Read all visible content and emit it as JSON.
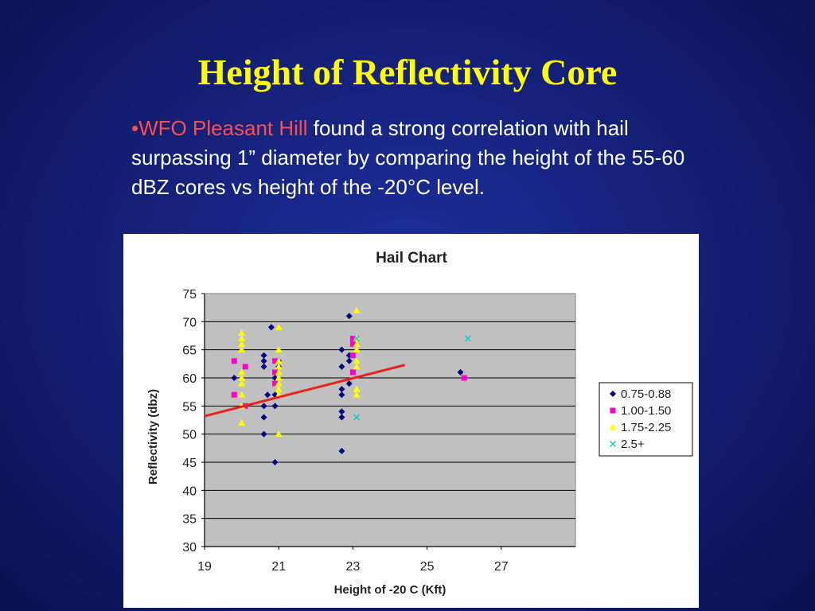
{
  "slide": {
    "title": "Height of Reflectivity Core",
    "bullet_marker": "•",
    "bullet_highlight": "WFO Pleasant Hill",
    "bullet_text": " found a strong correlation with hail surpassing 1” diameter by comparing the height of the 55-60 dBZ cores vs height of the -20°C level."
  },
  "colors": {
    "title": "#ffff00",
    "highlight": "#ff4e4e",
    "plot_bg": "#c0c0c0",
    "trend": "#e8231c"
  },
  "chart_data": {
    "type": "scatter",
    "title": "Hail Chart",
    "xlabel": "Height of -20 C (Kft)",
    "ylabel": "Reflectivity (dbz)",
    "xlim": [
      19,
      29
    ],
    "ylim": [
      30,
      75
    ],
    "xticks": [
      "19",
      "21",
      "23",
      "25",
      "27"
    ],
    "yticks": [
      "30",
      "35",
      "40",
      "45",
      "50",
      "55",
      "60",
      "65",
      "70",
      "75"
    ],
    "grid": "horizontal",
    "legend_position": "right",
    "series": [
      {
        "name": "0.75-0.88",
        "marker": "diamond",
        "color": "#000080",
        "points": [
          [
            20.8,
            69
          ],
          [
            20.6,
            64
          ],
          [
            20.6,
            63
          ],
          [
            20.6,
            62
          ],
          [
            20.7,
            57
          ],
          [
            20.6,
            55
          ],
          [
            20.6,
            53
          ],
          [
            20.6,
            50
          ],
          [
            20.9,
            45
          ],
          [
            21.0,
            63
          ],
          [
            21.0,
            62
          ],
          [
            20.9,
            60
          ],
          [
            20.9,
            57
          ],
          [
            20.9,
            55
          ],
          [
            19.8,
            60
          ],
          [
            22.7,
            65
          ],
          [
            22.7,
            62
          ],
          [
            22.7,
            58
          ],
          [
            22.7,
            57
          ],
          [
            22.7,
            54
          ],
          [
            22.7,
            53
          ],
          [
            22.7,
            47
          ],
          [
            22.9,
            71
          ],
          [
            22.9,
            64
          ],
          [
            22.9,
            63
          ],
          [
            22.9,
            59
          ],
          [
            25.9,
            61
          ]
        ]
      },
      {
        "name": "1.00-1.50",
        "marker": "square",
        "color": "#ff00cc",
        "points": [
          [
            19.8,
            63
          ],
          [
            19.8,
            57
          ],
          [
            20.1,
            62
          ],
          [
            20.1,
            55
          ],
          [
            20.9,
            63
          ],
          [
            20.9,
            61
          ],
          [
            20.9,
            59
          ],
          [
            23.0,
            67
          ],
          [
            23.0,
            66
          ],
          [
            23.0,
            64
          ],
          [
            23.0,
            61
          ],
          [
            26.0,
            60
          ]
        ]
      },
      {
        "name": "1.75-2.25",
        "marker": "triangle",
        "color": "#ffff00",
        "points": [
          [
            20.0,
            68
          ],
          [
            20.0,
            67
          ],
          [
            20.0,
            66
          ],
          [
            20.0,
            65
          ],
          [
            20.0,
            61
          ],
          [
            20.0,
            60
          ],
          [
            20.0,
            59
          ],
          [
            20.0,
            57
          ],
          [
            20.0,
            55
          ],
          [
            20.0,
            52
          ],
          [
            21.0,
            69
          ],
          [
            21.0,
            65
          ],
          [
            21.0,
            63
          ],
          [
            21.0,
            62
          ],
          [
            21.0,
            61
          ],
          [
            21.0,
            60
          ],
          [
            21.0,
            59
          ],
          [
            21.0,
            58
          ],
          [
            21.0,
            57
          ],
          [
            21.0,
            50
          ],
          [
            23.1,
            72
          ],
          [
            23.1,
            67
          ],
          [
            23.1,
            66
          ],
          [
            23.1,
            65
          ],
          [
            23.1,
            63
          ],
          [
            23.1,
            62
          ],
          [
            23.1,
            58
          ],
          [
            23.1,
            57
          ]
        ]
      },
      {
        "name": "2.5+",
        "marker": "x",
        "color": "#00cccc",
        "points": [
          [
            23.1,
            67
          ],
          [
            23.1,
            53
          ],
          [
            26.1,
            67
          ]
        ]
      }
    ],
    "trendline": {
      "x": [
        19,
        24.4
      ],
      "y": [
        53.2,
        62.3
      ]
    }
  }
}
